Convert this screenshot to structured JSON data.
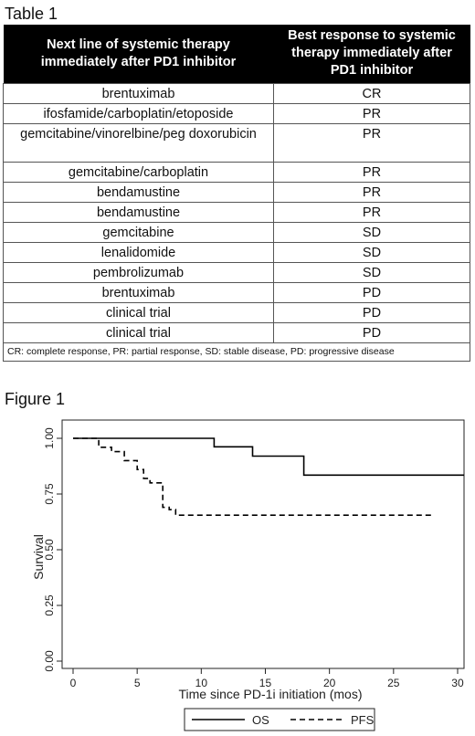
{
  "table": {
    "caption": "Table 1",
    "headers": [
      "Next line of systemic therapy immediately after PD1 inhibitor",
      "Best response to systemic therapy immediately after PD1 inhibitor"
    ],
    "rows": [
      {
        "therapy": "brentuximab",
        "response": "CR"
      },
      {
        "therapy": "ifosfamide/carboplatin/etoposide",
        "response": "PR"
      },
      {
        "therapy": "gemcitabine/vinorelbine/peg doxorubicin",
        "response": "PR"
      },
      {
        "therapy": "gemcitabine/carboplatin",
        "response": "PR"
      },
      {
        "therapy": "bendamustine",
        "response": "PR"
      },
      {
        "therapy": "bendamustine",
        "response": "PR"
      },
      {
        "therapy": "gemcitabine",
        "response": "SD"
      },
      {
        "therapy": "lenalidomide",
        "response": "SD"
      },
      {
        "therapy": "pembrolizumab",
        "response": "SD"
      },
      {
        "therapy": "brentuximab",
        "response": "PD"
      },
      {
        "therapy": "clinical trial",
        "response": "PD"
      },
      {
        "therapy": "clinical trial",
        "response": "PD"
      }
    ],
    "footnote": "CR: complete response, PR: partial response, SD: stable disease, PD: progressive disease"
  },
  "figure": {
    "caption": "Figure 1"
  },
  "chart_data": {
    "type": "line",
    "title": "",
    "xlabel": "Time since PD-1i initiation (mos)",
    "ylabel": "Survival",
    "xlim": [
      0,
      30.5
    ],
    "ylim": [
      0,
      1
    ],
    "x_ticks": [
      0,
      5,
      10,
      15,
      20,
      25,
      30
    ],
    "y_ticks": [
      0.0,
      0.25,
      0.5,
      0.75,
      1.0
    ],
    "x_tick_labels": [
      "0",
      "5",
      "10",
      "15",
      "20",
      "25",
      "30"
    ],
    "y_tick_labels": [
      "0.00",
      "0.25",
      "0.50",
      "0.75",
      "1.00"
    ],
    "grid": false,
    "legend_position": "bottom-center",
    "step": true,
    "series": [
      {
        "name": "OS",
        "style": "solid",
        "color": "#000000",
        "points": [
          [
            0,
            1.0
          ],
          [
            11,
            1.0
          ],
          [
            11,
            0.962
          ],
          [
            14,
            0.962
          ],
          [
            14,
            0.92
          ],
          [
            18,
            0.92
          ],
          [
            18,
            0.835
          ],
          [
            30.5,
            0.835
          ]
        ]
      },
      {
        "name": "PFS",
        "style": "dashed",
        "color": "#000000",
        "points": [
          [
            0,
            1.0
          ],
          [
            2,
            1.0
          ],
          [
            2,
            0.96
          ],
          [
            3,
            0.96
          ],
          [
            3,
            0.94
          ],
          [
            4,
            0.94
          ],
          [
            4,
            0.9
          ],
          [
            5,
            0.9
          ],
          [
            5,
            0.86
          ],
          [
            5.5,
            0.86
          ],
          [
            5.5,
            0.82
          ],
          [
            6,
            0.82
          ],
          [
            6,
            0.8
          ],
          [
            7,
            0.8
          ],
          [
            7,
            0.69
          ],
          [
            7.5,
            0.69
          ],
          [
            7.5,
            0.68
          ],
          [
            8,
            0.68
          ],
          [
            8,
            0.655
          ],
          [
            28,
            0.655
          ]
        ]
      }
    ]
  }
}
